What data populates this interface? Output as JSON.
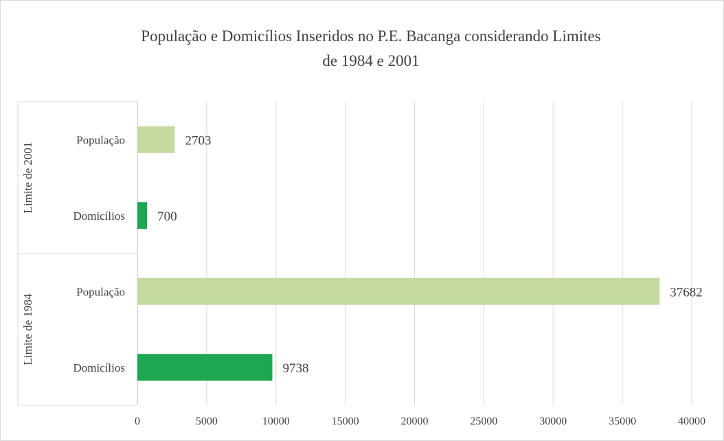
{
  "chart_data": {
    "type": "bar",
    "orientation": "horizontal",
    "title_lines": [
      "População e Domicílios Inseridos no P.E. Bacanga considerando Limites",
      "de 1984  e 2001"
    ],
    "xlim": [
      0,
      40000
    ],
    "xticks": [
      "0",
      "5000",
      "10000",
      "15000",
      "20000",
      "25000",
      "30000",
      "35000",
      "40000"
    ],
    "grid": "vertical",
    "legend": "none",
    "groups": [
      {
        "name": "Limite de 2001",
        "bars": [
          {
            "category": "População",
            "value": 2703,
            "label": "2703",
            "color": "#c5d9a0"
          },
          {
            "category": "Domicílios",
            "value": 700,
            "label": "700",
            "color": "#1ea650"
          }
        ]
      },
      {
        "name": "Limite de 1984",
        "bars": [
          {
            "category": "População",
            "value": 37682,
            "label": "37682",
            "color": "#c5d9a0"
          },
          {
            "category": "Domicílios",
            "value": 9738,
            "label": "9738",
            "color": "#1ea650"
          }
        ]
      }
    ]
  }
}
